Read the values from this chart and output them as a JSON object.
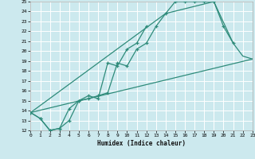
{
  "xlabel": "Humidex (Indice chaleur)",
  "xlim": [
    0,
    23
  ],
  "ylim": [
    12,
    25
  ],
  "xticks": [
    0,
    1,
    2,
    3,
    4,
    5,
    6,
    7,
    8,
    9,
    10,
    11,
    12,
    13,
    14,
    15,
    16,
    17,
    18,
    19,
    20,
    21,
    22,
    23
  ],
  "yticks": [
    12,
    13,
    14,
    15,
    16,
    17,
    18,
    19,
    20,
    21,
    22,
    23,
    24,
    25
  ],
  "bg_color": "#cce9ee",
  "grid_color": "#b8dde4",
  "line_color": "#2e8b7a",
  "line1_x": [
    0,
    1,
    2,
    3,
    4,
    5,
    6,
    7,
    8,
    9,
    10,
    11,
    12,
    13,
    14,
    15,
    16,
    17,
    18,
    19,
    20,
    21,
    22,
    23
  ],
  "line1_y": [
    13.8,
    13.2,
    12.0,
    12.2,
    13.0,
    15.0,
    15.2,
    15.5,
    15.8,
    18.8,
    18.5,
    20.2,
    20.8,
    22.5,
    23.8,
    25.0,
    25.0,
    25.0,
    25.0,
    25.0,
    22.5,
    20.8,
    null,
    null
  ],
  "line2_x": [
    0,
    1,
    2,
    3,
    4,
    5,
    6,
    7,
    8,
    9,
    10,
    11,
    12
  ],
  "line2_y": [
    13.8,
    13.2,
    12.0,
    12.2,
    14.2,
    15.0,
    15.5,
    15.2,
    18.8,
    18.5,
    20.2,
    20.8,
    22.5
  ],
  "line3_x": [
    0,
    23
  ],
  "line3_y": [
    13.8,
    19.2
  ],
  "line4_x": [
    0,
    14,
    19,
    21,
    22,
    23
  ],
  "line4_y": [
    13.8,
    23.8,
    25.0,
    20.8,
    19.5,
    19.2
  ]
}
